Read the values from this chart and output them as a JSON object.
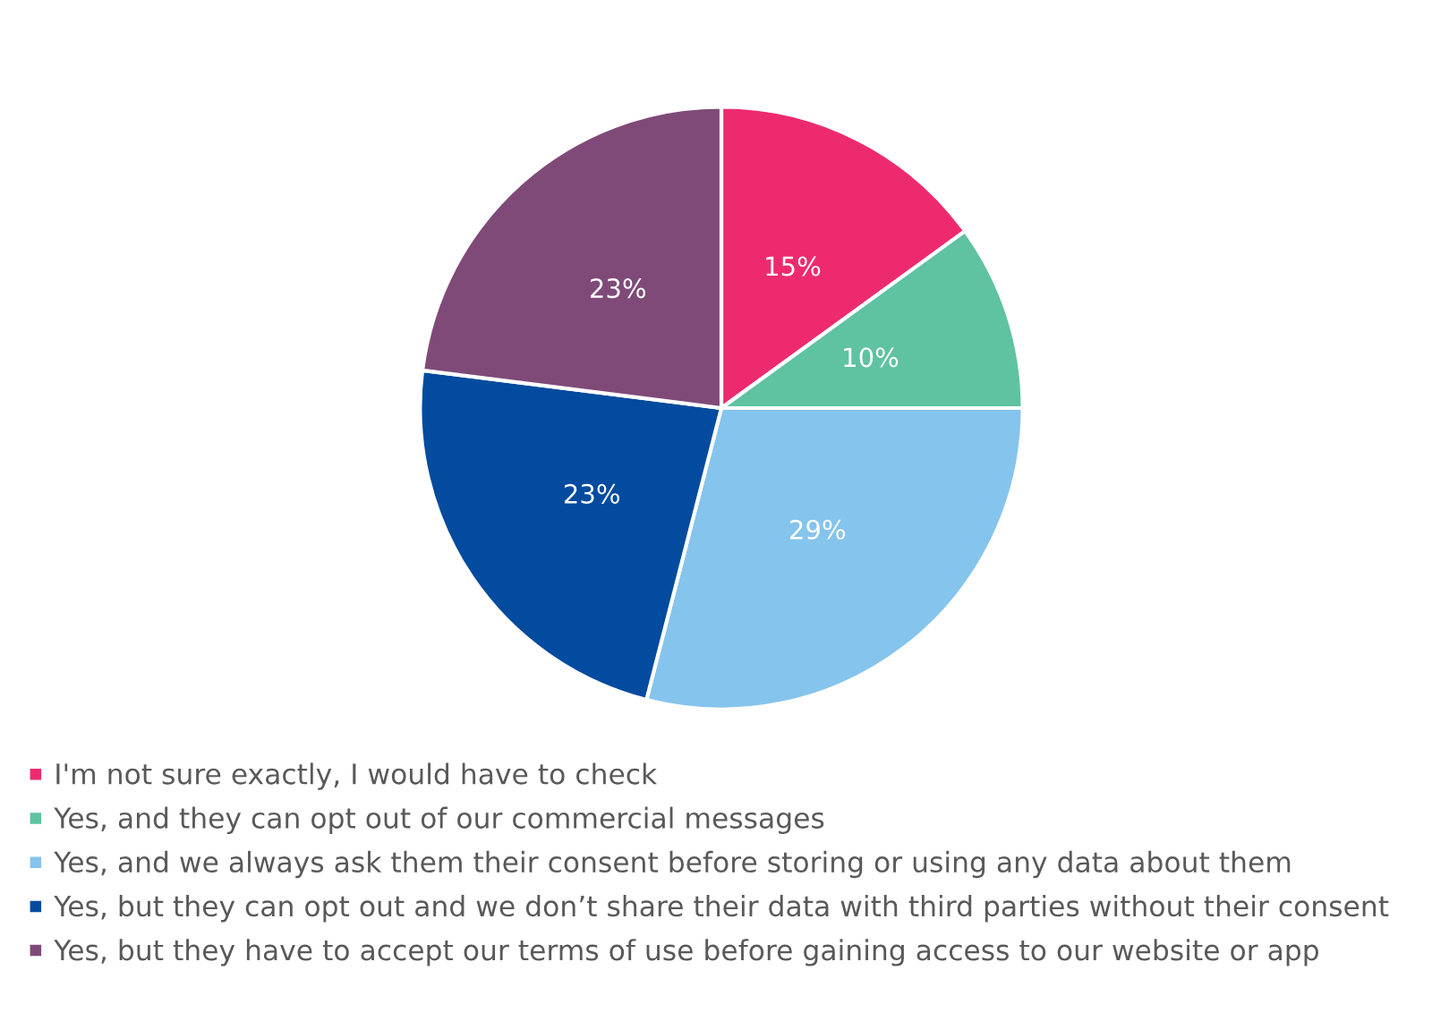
{
  "chart_data": {
    "type": "pie",
    "categories": [
      "I'm not sure exactly, I would have to check",
      "Yes, and they can opt out of our commercial messages",
      "Yes, and we always ask them their consent before storing or using any data about them",
      "Yes, but they can opt out and we don’t share their data with third parties without their consent",
      "Yes, but they have to accept our terms of use before gaining access to our website or app"
    ],
    "values": [
      15,
      10,
      29,
      23,
      23
    ],
    "colors": [
      "#ee2a6f",
      "#5fc2a0",
      "#85c4ec",
      "#024b9e",
      "#7f4a78"
    ],
    "value_labels": [
      "15%",
      "10%",
      "29%",
      "23%",
      "23%"
    ],
    "legend": "bottom"
  }
}
